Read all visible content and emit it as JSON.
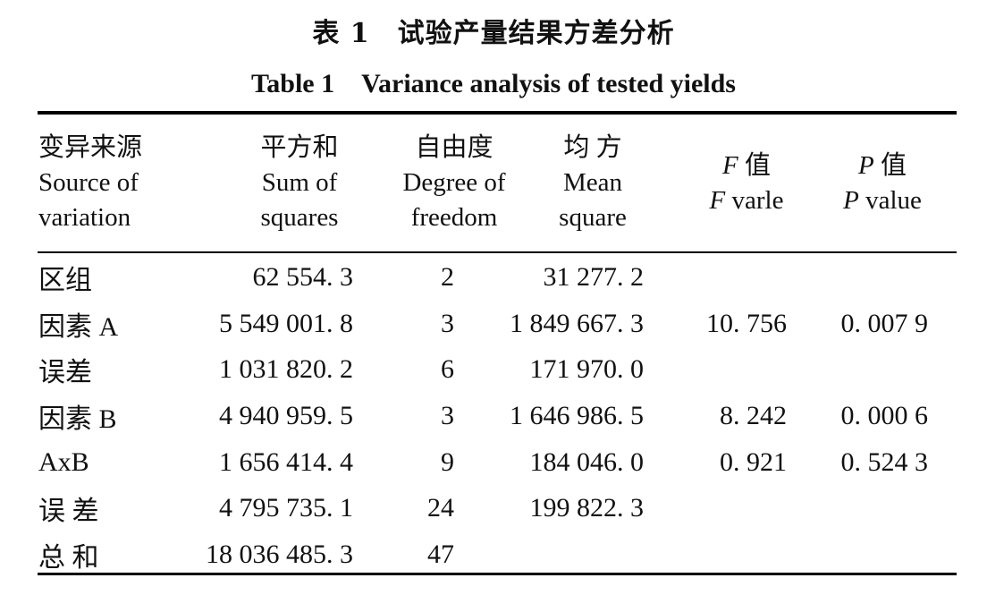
{
  "title_cn": "表 1　试验产量结果方差分析",
  "title_en": "Table 1　Variance analysis of tested yields",
  "headers": {
    "source": [
      "变异来源",
      "Source of",
      "variation"
    ],
    "ss": [
      "平方和",
      "Sum of",
      "squares"
    ],
    "df": [
      "自由度",
      "Degree of",
      "freedom"
    ],
    "ms": [
      "均 方",
      "Mean",
      "square"
    ],
    "f": {
      "sym": "F",
      "cn": " 值",
      "sym2": "F",
      "en": " varle"
    },
    "p": {
      "sym": "P",
      "cn": " 值",
      "sym2": "P",
      "en": " value"
    }
  },
  "rows": [
    {
      "source": "区组",
      "ss": "62 554. 3",
      "df": "2",
      "ms": "31 277. 2",
      "f": "",
      "p": ""
    },
    {
      "source": "因素 A",
      "ss": "5 549 001. 8",
      "df": "3",
      "ms": "1 849 667. 3",
      "f": "10. 756",
      "p": "0. 007 9"
    },
    {
      "source": "误差",
      "ss": "1 031 820. 2",
      "df": "6",
      "ms": "171 970. 0",
      "f": "",
      "p": ""
    },
    {
      "source": "因素 B",
      "ss": "4 940 959. 5",
      "df": "3",
      "ms": "1 646 986. 5",
      "f": "8. 242",
      "p": "0. 000 6"
    },
    {
      "source": "AxB",
      "ss": "1 656 414. 4",
      "df": "9",
      "ms": "184 046. 0",
      "f": "0. 921",
      "p": "0. 524 3"
    },
    {
      "source": "误 差",
      "ss": "4 795 735. 1",
      "df": "24",
      "ms": "199 822. 3",
      "f": "",
      "p": ""
    },
    {
      "source": "总 和",
      "ss": "18 036 485. 3",
      "df": "47",
      "ms": "",
      "f": "",
      "p": ""
    }
  ]
}
